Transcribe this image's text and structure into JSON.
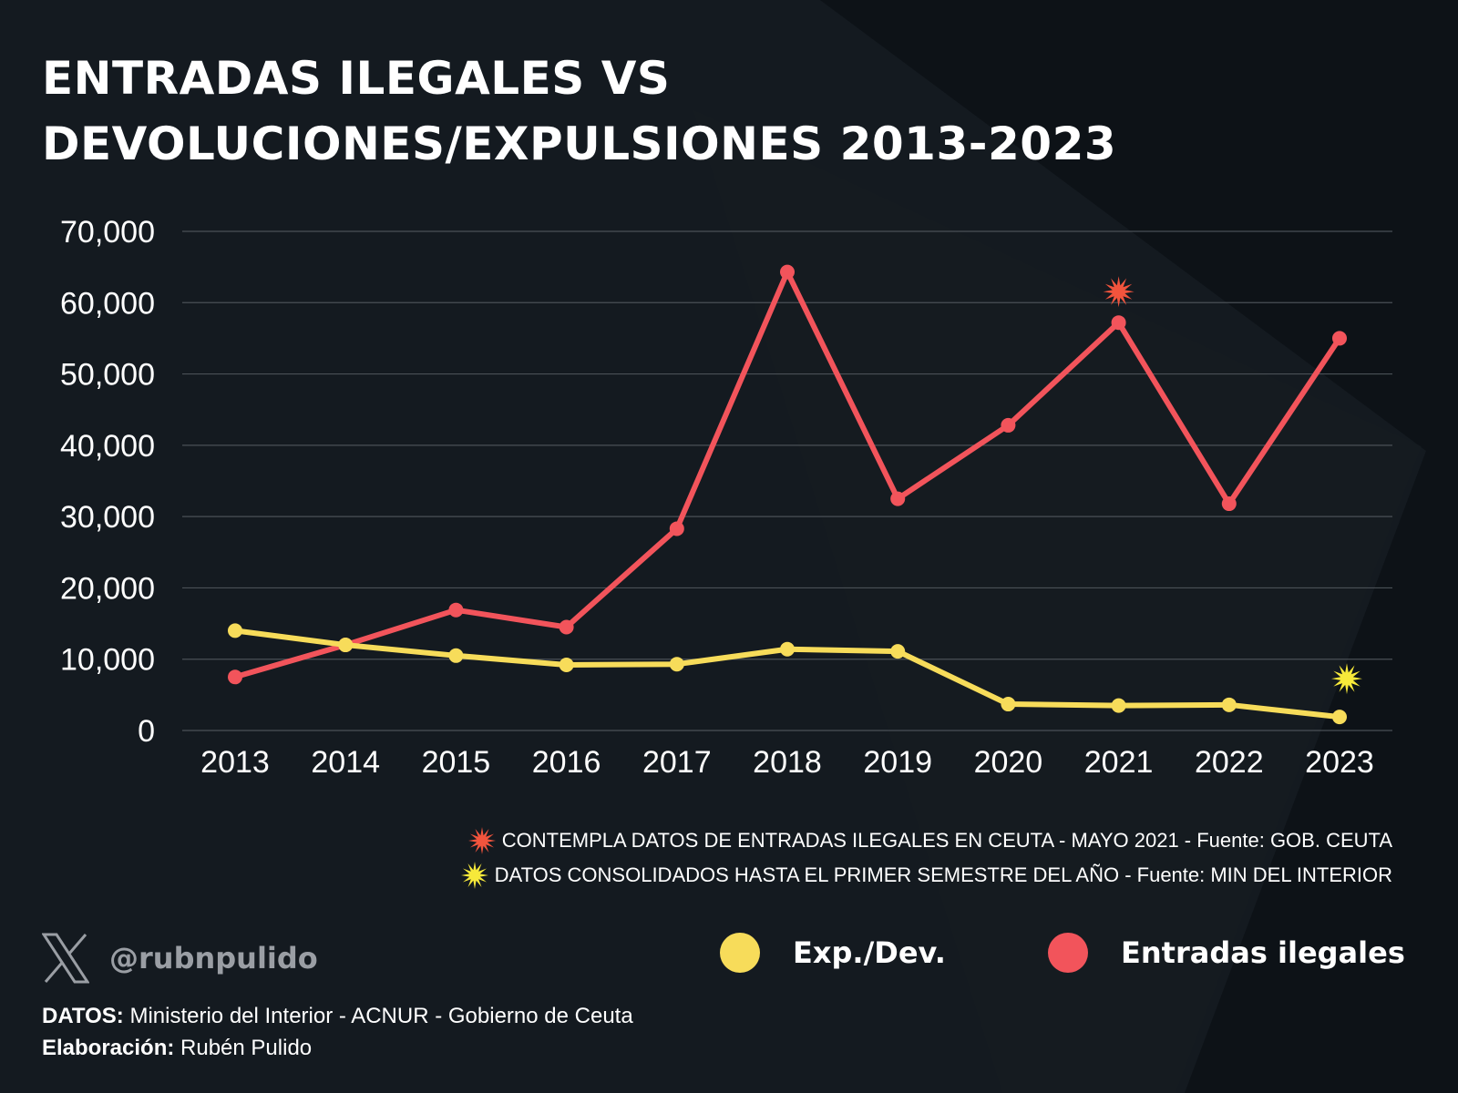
{
  "title": {
    "line1": "ENTRADAS ILEGALES VS",
    "line2": "DEVOLUCIONES/EXPULSIONES 2013-2023"
  },
  "chart_data": {
    "type": "line",
    "x": [
      "2013",
      "2014",
      "2015",
      "2016",
      "2017",
      "2018",
      "2019",
      "2020",
      "2021",
      "2022",
      "2023"
    ],
    "ylim": [
      0,
      70000
    ],
    "yticks": [
      0,
      10000,
      20000,
      30000,
      40000,
      50000,
      60000,
      70000
    ],
    "ytick_labels": [
      "0",
      "10,000",
      "20,000",
      "30,000",
      "40,000",
      "50,000",
      "60,000",
      "70,000"
    ],
    "grid": true,
    "series": [
      {
        "name": "Exp./Dev.",
        "color": "#f7dc5a",
        "values": [
          14000,
          12000,
          10500,
          9200,
          9300,
          11400,
          11100,
          3700,
          3500,
          3600,
          1900
        ]
      },
      {
        "name": "Entradas ilegales",
        "color": "#f2545b",
        "values": [
          7500,
          12000,
          16900,
          14500,
          28300,
          64300,
          32500,
          42800,
          57200,
          31800,
          55000
        ]
      }
    ],
    "markers": [
      {
        "series": "Entradas ilegales",
        "x": "2021",
        "icon": "red-star-icon",
        "color": "#f2543d"
      },
      {
        "series": "Exp./Dev.",
        "x": "2023",
        "icon": "yellow-star-icon",
        "color": "#f7e93a"
      }
    ],
    "legend_position": "bottom-right"
  },
  "footnotes": [
    {
      "icon": "red-star-icon",
      "color": "#f2543d",
      "text": "CONTEMPLA DATOS DE ENTRADAS ILEGALES EN CEUTA - MAYO 2021 - Fuente: GOB. CEUTA"
    },
    {
      "icon": "yellow-star-icon",
      "color": "#f7e93a",
      "text": "DATOS CONSOLIDADOS HASTA EL PRIMER SEMESTRE DEL AÑO - Fuente:  MIN DEL INTERIOR"
    }
  ],
  "legend": [
    {
      "label": "Exp./Dev.",
      "color": "#f7dc5a"
    },
    {
      "label": "Entradas ilegales",
      "color": "#f2545b"
    }
  ],
  "brand": {
    "icon": "x-logo-icon",
    "handle": "@rubnpulido"
  },
  "credits": {
    "data_label": "DATOS:",
    "data_value": "Ministerio del Interior - ACNUR - Gobierno de Ceuta",
    "made_label": "Elaboración:",
    "made_value": "Rubén Pulido"
  },
  "colors": {
    "background": "#141a20",
    "grid": "#4a5056",
    "text": "#ffffff"
  }
}
